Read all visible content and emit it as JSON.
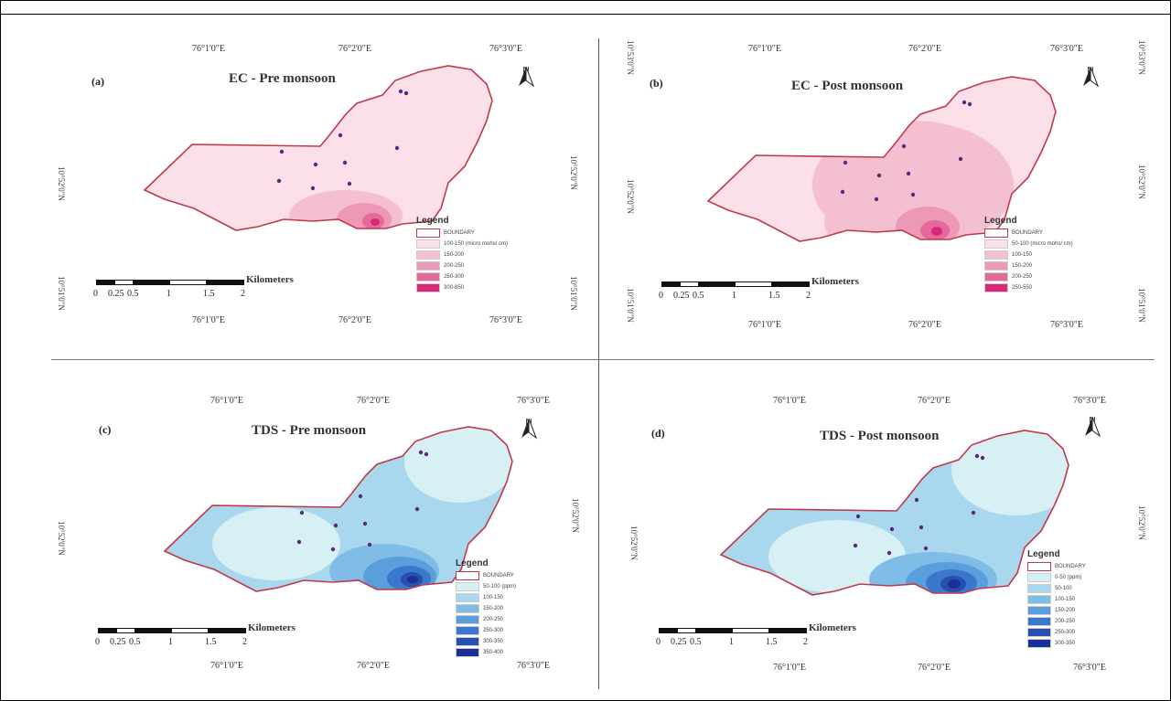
{
  "panels": [
    {
      "id": "a",
      "label": "(a)",
      "title": "EC - Pre monsoon",
      "theme": "pink",
      "lon_top": [
        "76°1'0\"E",
        "76°2'0\"E",
        "76°3'0\"E"
      ],
      "lon_bottom": [
        "76°1'0\"E",
        "76°2'0\"E",
        "76°3'0\"E"
      ],
      "lat_left": [
        "10°52'0\"N",
        "10°51'0\"N"
      ],
      "lat_right": [
        "10°52'0\"N",
        "10°51'0\"N"
      ],
      "legend_title": "Legend",
      "legend": [
        {
          "label": "BOUNDARY",
          "color": "#ffffff",
          "boundary": true
        },
        {
          "label": "100-150 (micro mohs/ cm)",
          "color": "#fbe0ea"
        },
        {
          "label": "150-200",
          "color": "#f5bfd2"
        },
        {
          "label": "200-250",
          "color": "#ee98b8"
        },
        {
          "label": "250-300",
          "color": "#e56a9a"
        },
        {
          "label": "300-850",
          "color": "#d8287a"
        }
      ],
      "scale_title": "Kilometers",
      "scale_ticks": [
        "0",
        "0.25",
        "0.5",
        "1",
        "1.5",
        "2"
      ],
      "north": "N"
    },
    {
      "id": "b",
      "label": "(b)",
      "title": "EC - Post monsoon",
      "theme": "pink",
      "lon_top": [
        "76°1'0\"E",
        "76°2'0\"E",
        "76°3'0\"E"
      ],
      "lon_bottom": [
        "76°1'0\"E",
        "76°2'0\"E",
        "76°3'0\"E"
      ],
      "lat_left": [
        "10°53'0\"N",
        "10°52'0\"N",
        "10°51'0\"N"
      ],
      "lat_right": [
        "10°53'0\"N",
        "10°52'0\"N",
        "10°51'0\"N"
      ],
      "legend_title": "Legend",
      "legend": [
        {
          "label": "BOUNDARY",
          "color": "#ffffff",
          "boundary": true
        },
        {
          "label": "50-100 (micro mohs/ cm)",
          "color": "#fbe0ea"
        },
        {
          "label": "100-150",
          "color": "#f5bfd2"
        },
        {
          "label": "150-200",
          "color": "#ee98b8"
        },
        {
          "label": "200-250",
          "color": "#e56a9a"
        },
        {
          "label": "250-550",
          "color": "#d8287a"
        }
      ],
      "scale_title": "Kilometers",
      "scale_ticks": [
        "0",
        "0.25",
        "0.5",
        "1",
        "1.5",
        "2"
      ],
      "north": "N"
    },
    {
      "id": "c",
      "label": "(c)",
      "title": "TDS - Pre monsoon",
      "theme": "blue",
      "lon_top": [
        "76°1'0\"E",
        "76°2'0\"E",
        "76°3'0\"E"
      ],
      "lon_bottom": [
        "76°1'0\"E",
        "76°2'0\"E",
        "76°3'0\"E"
      ],
      "lat_left": [
        "10°52'0\"N"
      ],
      "lat_right": [
        "10°52'0\"N"
      ],
      "legend_title": "Legend",
      "legend": [
        {
          "label": "BOUNDARY",
          "color": "#ffffff",
          "boundary": true
        },
        {
          "label": "50-100 (ppm)",
          "color": "#d6f0f3"
        },
        {
          "label": "100-150",
          "color": "#a9d7ee"
        },
        {
          "label": "150-200",
          "color": "#7fbde6"
        },
        {
          "label": "200-250",
          "color": "#5a9fdc"
        },
        {
          "label": "250-300",
          "color": "#3a78cc"
        },
        {
          "label": "300-350",
          "color": "#2550b0"
        },
        {
          "label": "350-400",
          "color": "#1a2f95"
        }
      ],
      "scale_title": "Kilometers",
      "scale_ticks": [
        "0",
        "0.25",
        "0.5",
        "1",
        "1.5",
        "2"
      ],
      "north": "N"
    },
    {
      "id": "d",
      "label": "(d)",
      "title": "TDS - Post monsoon",
      "theme": "blue",
      "lon_top": [
        "76°1'0\"E",
        "76°2'0\"E",
        "76°3'0\"E"
      ],
      "lon_bottom": [
        "76°1'0\"E",
        "76°2'0\"E",
        "76°3'0\"E"
      ],
      "lat_left": [
        "10°52'0\"N"
      ],
      "lat_right": [
        "10°52'0\"N"
      ],
      "legend_title": "Legend",
      "legend": [
        {
          "label": "BOUNDARY",
          "color": "#ffffff",
          "boundary": true
        },
        {
          "label": "0-50 (ppm)",
          "color": "#d6f0f3"
        },
        {
          "label": "50-100",
          "color": "#a9d7ee"
        },
        {
          "label": "100-150",
          "color": "#7fbde6"
        },
        {
          "label": "150-200",
          "color": "#5a9fdc"
        },
        {
          "label": "200-250",
          "color": "#3a78cc"
        },
        {
          "label": "250-300",
          "color": "#2550b0"
        },
        {
          "label": "300-350",
          "color": "#1a2f95"
        }
      ],
      "scale_title": "Kilometers",
      "scale_ticks": [
        "0",
        "0.25",
        "0.5",
        "1",
        "1.5",
        "2"
      ],
      "north": "N"
    }
  ],
  "colors": {
    "boundary": "#c0394a",
    "well": "#5a2a7a",
    "pink_base": "#fbe0ea",
    "blue_base": "#a9d7ee"
  }
}
